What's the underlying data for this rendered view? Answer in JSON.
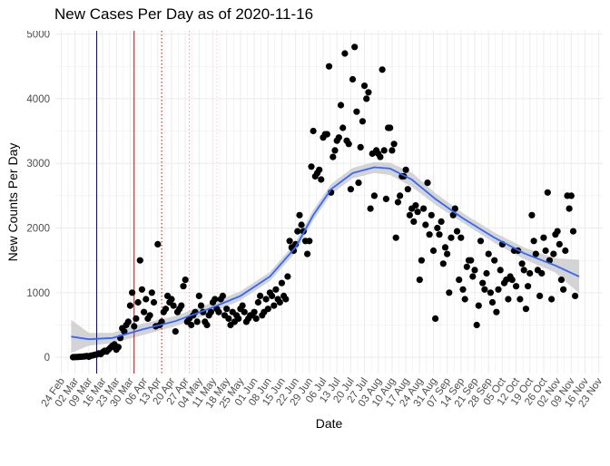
{
  "chart_data": {
    "type": "scatter",
    "title": "New Cases Per Day as of 2020-11-16",
    "xlabel": "Date",
    "ylabel": "New Counts Per Day",
    "xlim": [
      "2020-02-21",
      "2020-11-25"
    ],
    "ylim": [
      -250,
      5050
    ],
    "grid": true,
    "legend": "none",
    "y_ticks": [
      0,
      1000,
      2000,
      3000,
      4000,
      5000
    ],
    "x_ticks": [
      {
        "date": "2020-02-24",
        "label": "24 Feb"
      },
      {
        "date": "2020-03-02",
        "label": "02 Mar"
      },
      {
        "date": "2020-03-09",
        "label": "09 Mar"
      },
      {
        "date": "2020-03-16",
        "label": "16 Mar"
      },
      {
        "date": "2020-03-23",
        "label": "23 Mar"
      },
      {
        "date": "2020-03-30",
        "label": "30 Mar"
      },
      {
        "date": "2020-04-06",
        "label": "06 Apr"
      },
      {
        "date": "2020-04-13",
        "label": "13 Apr"
      },
      {
        "date": "2020-04-20",
        "label": "20 Apr"
      },
      {
        "date": "2020-04-27",
        "label": "27 Apr"
      },
      {
        "date": "2020-05-04",
        "label": "04 May"
      },
      {
        "date": "2020-05-11",
        "label": "11 May"
      },
      {
        "date": "2020-05-18",
        "label": "18 May"
      },
      {
        "date": "2020-05-25",
        "label": "25 May"
      },
      {
        "date": "2020-06-01",
        "label": "01 Jun"
      },
      {
        "date": "2020-06-08",
        "label": "08 Jun"
      },
      {
        "date": "2020-06-15",
        "label": "15 Jun"
      },
      {
        "date": "2020-06-22",
        "label": "22 Jun"
      },
      {
        "date": "2020-06-29",
        "label": "29 Jun"
      },
      {
        "date": "2020-07-06",
        "label": "06 Jul"
      },
      {
        "date": "2020-07-13",
        "label": "13 Jul"
      },
      {
        "date": "2020-07-20",
        "label": "20 Jul"
      },
      {
        "date": "2020-07-27",
        "label": "27 Jul"
      },
      {
        "date": "2020-08-03",
        "label": "03 Aug"
      },
      {
        "date": "2020-08-10",
        "label": "10 Aug"
      },
      {
        "date": "2020-08-17",
        "label": "17 Aug"
      },
      {
        "date": "2020-08-24",
        "label": "24 Aug"
      },
      {
        "date": "2020-08-31",
        "label": "31 Aug"
      },
      {
        "date": "2020-09-07",
        "label": "07 Sep"
      },
      {
        "date": "2020-09-14",
        "label": "14 Sep"
      },
      {
        "date": "2020-09-21",
        "label": "21 Sep"
      },
      {
        "date": "2020-09-28",
        "label": "28 Sep"
      },
      {
        "date": "2020-10-05",
        "label": "05 Oct"
      },
      {
        "date": "2020-10-12",
        "label": "12 Oct"
      },
      {
        "date": "2020-10-19",
        "label": "19 Oct"
      },
      {
        "date": "2020-10-26",
        "label": "26 Oct"
      },
      {
        "date": "2020-11-02",
        "label": "02 Nov"
      },
      {
        "date": "2020-11-09",
        "label": "09 Nov"
      },
      {
        "date": "2020-11-16",
        "label": "16 Nov"
      },
      {
        "date": "2020-11-23",
        "label": "23 Nov"
      }
    ],
    "vlines": [
      {
        "date": "2020-03-13",
        "color": "#00008b",
        "style": "solid"
      },
      {
        "date": "2020-04-01",
        "color": "#cc0000",
        "style": "solid"
      },
      {
        "date": "2020-04-15",
        "color": "#cc0000",
        "style": "dotted"
      },
      {
        "date": "2020-04-29",
        "color": "#f4a0a0",
        "style": "dotted"
      },
      {
        "date": "2020-05-13",
        "color": "#f4cccc",
        "style": "dotted"
      }
    ],
    "colors": {
      "points": "#000000",
      "smooth": "#3366ff",
      "band": "#cccccc",
      "grid": "#ebebeb"
    },
    "smooth": {
      "x": [
        "2020-02-29",
        "2020-03-09",
        "2020-03-21",
        "2020-04-05",
        "2020-04-22",
        "2020-05-09",
        "2020-05-25",
        "2020-06-09",
        "2020-06-22",
        "2020-07-01",
        "2020-07-10",
        "2020-07-21",
        "2020-08-01",
        "2020-08-09",
        "2020-08-20",
        "2020-09-01",
        "2020-09-15",
        "2020-10-01",
        "2020-10-16",
        "2020-11-01",
        "2020-11-13"
      ],
      "y": [
        320,
        280,
        300,
        430,
        560,
        750,
        950,
        1250,
        1700,
        2200,
        2600,
        2850,
        2940,
        2920,
        2750,
        2450,
        2150,
        1850,
        1610,
        1420,
        1250
      ],
      "lower": [
        70,
        180,
        220,
        340,
        480,
        670,
        880,
        1180,
        1620,
        2120,
        2520,
        2770,
        2850,
        2820,
        2640,
        2360,
        2080,
        1770,
        1520,
        1310,
        990
      ],
      "upper": [
        580,
        380,
        380,
        520,
        640,
        830,
        1020,
        1320,
        1780,
        2280,
        2680,
        2930,
        3020,
        3010,
        2860,
        2540,
        2230,
        1930,
        1700,
        1530,
        1510
      ]
    },
    "points": [
      [
        "2020-03-01",
        2
      ],
      [
        "2020-03-02",
        5
      ],
      [
        "2020-03-03",
        5
      ],
      [
        "2020-03-04",
        8
      ],
      [
        "2020-03-05",
        10
      ],
      [
        "2020-03-06",
        12
      ],
      [
        "2020-03-07",
        15
      ],
      [
        "2020-03-08",
        20
      ],
      [
        "2020-03-09",
        10
      ],
      [
        "2020-03-10",
        25
      ],
      [
        "2020-03-11",
        30
      ],
      [
        "2020-03-12",
        40
      ],
      [
        "2020-03-13",
        45
      ],
      [
        "2020-03-14",
        60
      ],
      [
        "2020-03-15",
        50
      ],
      [
        "2020-03-16",
        80
      ],
      [
        "2020-03-17",
        100
      ],
      [
        "2020-03-18",
        90
      ],
      [
        "2020-03-19",
        120
      ],
      [
        "2020-03-20",
        150
      ],
      [
        "2020-03-21",
        180
      ],
      [
        "2020-03-22",
        200
      ],
      [
        "2020-03-23",
        120
      ],
      [
        "2020-03-24",
        160
      ],
      [
        "2020-03-25",
        300
      ],
      [
        "2020-03-26",
        450
      ],
      [
        "2020-03-27",
        400
      ],
      [
        "2020-03-28",
        500
      ],
      [
        "2020-03-29",
        550
      ],
      [
        "2020-03-30",
        800
      ],
      [
        "2020-03-31",
        1000
      ],
      [
        "2020-04-01",
        480
      ],
      [
        "2020-04-02",
        600
      ],
      [
        "2020-04-03",
        850
      ],
      [
        "2020-04-04",
        1500
      ],
      [
        "2020-04-05",
        1050
      ],
      [
        "2020-04-06",
        700
      ],
      [
        "2020-04-07",
        900
      ],
      [
        "2020-04-08",
        600
      ],
      [
        "2020-04-09",
        650
      ],
      [
        "2020-04-10",
        1000
      ],
      [
        "2020-04-11",
        850
      ],
      [
        "2020-04-12",
        480
      ],
      [
        "2020-04-13",
        1750
      ],
      [
        "2020-04-14",
        500
      ],
      [
        "2020-04-15",
        550
      ],
      [
        "2020-04-16",
        700
      ],
      [
        "2020-04-17",
        750
      ],
      [
        "2020-04-18",
        950
      ],
      [
        "2020-04-19",
        850
      ],
      [
        "2020-04-20",
        900
      ],
      [
        "2020-04-21",
        800
      ],
      [
        "2020-04-22",
        400
      ],
      [
        "2020-04-23",
        700
      ],
      [
        "2020-04-24",
        750
      ],
      [
        "2020-04-25",
        800
      ],
      [
        "2020-04-26",
        1100
      ],
      [
        "2020-04-27",
        1200
      ],
      [
        "2020-04-28",
        550
      ],
      [
        "2020-04-29",
        600
      ],
      [
        "2020-04-30",
        500
      ],
      [
        "2020-05-01",
        650
      ],
      [
        "2020-05-02",
        700
      ],
      [
        "2020-05-03",
        550
      ],
      [
        "2020-05-04",
        950
      ],
      [
        "2020-05-05",
        800
      ],
      [
        "2020-05-06",
        700
      ],
      [
        "2020-05-07",
        550
      ],
      [
        "2020-05-08",
        500
      ],
      [
        "2020-05-09",
        650
      ],
      [
        "2020-05-10",
        700
      ],
      [
        "2020-05-11",
        850
      ],
      [
        "2020-05-12",
        900
      ],
      [
        "2020-05-13",
        750
      ],
      [
        "2020-05-14",
        700
      ],
      [
        "2020-05-15",
        900
      ],
      [
        "2020-05-16",
        950
      ],
      [
        "2020-05-17",
        650
      ],
      [
        "2020-05-18",
        750
      ],
      [
        "2020-05-19",
        600
      ],
      [
        "2020-05-20",
        500
      ],
      [
        "2020-05-21",
        700
      ],
      [
        "2020-05-22",
        550
      ],
      [
        "2020-05-23",
        650
      ],
      [
        "2020-05-24",
        600
      ],
      [
        "2020-05-25",
        750
      ],
      [
        "2020-05-26",
        800
      ],
      [
        "2020-05-27",
        700
      ],
      [
        "2020-05-28",
        550
      ],
      [
        "2020-05-29",
        600
      ],
      [
        "2020-05-30",
        650
      ],
      [
        "2020-05-31",
        650
      ],
      [
        "2020-06-01",
        700
      ],
      [
        "2020-06-02",
        600
      ],
      [
        "2020-06-03",
        850
      ],
      [
        "2020-06-04",
        950
      ],
      [
        "2020-06-05",
        650
      ],
      [
        "2020-06-06",
        700
      ],
      [
        "2020-06-07",
        900
      ],
      [
        "2020-06-08",
        750
      ],
      [
        "2020-06-09",
        1000
      ],
      [
        "2020-06-10",
        950
      ],
      [
        "2020-06-11",
        800
      ],
      [
        "2020-06-12",
        1050
      ],
      [
        "2020-06-13",
        900
      ],
      [
        "2020-06-14",
        850
      ],
      [
        "2020-06-15",
        1150
      ],
      [
        "2020-06-16",
        950
      ],
      [
        "2020-06-17",
        900
      ],
      [
        "2020-06-18",
        1250
      ],
      [
        "2020-06-19",
        1800
      ],
      [
        "2020-06-20",
        1700
      ],
      [
        "2020-06-21",
        1650
      ],
      [
        "2020-06-22",
        1750
      ],
      [
        "2020-06-23",
        1950
      ],
      [
        "2020-06-24",
        2200
      ],
      [
        "2020-06-25",
        2050
      ],
      [
        "2020-06-26",
        1950
      ],
      [
        "2020-06-27",
        1800
      ],
      [
        "2020-06-28",
        1600
      ],
      [
        "2020-06-29",
        1800
      ],
      [
        "2020-06-30",
        2950
      ],
      [
        "2020-07-01",
        3500
      ],
      [
        "2020-07-02",
        2800
      ],
      [
        "2020-07-03",
        2850
      ],
      [
        "2020-07-04",
        2900
      ],
      [
        "2020-07-05",
        2750
      ],
      [
        "2020-07-06",
        3400
      ],
      [
        "2020-07-07",
        3450
      ],
      [
        "2020-07-08",
        3450
      ],
      [
        "2020-07-09",
        4500
      ],
      [
        "2020-07-10",
        2550
      ],
      [
        "2020-07-11",
        3100
      ],
      [
        "2020-07-12",
        3200
      ],
      [
        "2020-07-13",
        3350
      ],
      [
        "2020-07-14",
        3400
      ],
      [
        "2020-07-15",
        3900
      ],
      [
        "2020-07-16",
        3550
      ],
      [
        "2020-07-17",
        4700
      ],
      [
        "2020-07-18",
        3350
      ],
      [
        "2020-07-19",
        3300
      ],
      [
        "2020-07-20",
        2600
      ],
      [
        "2020-07-21",
        4300
      ],
      [
        "2020-07-22",
        4800
      ],
      [
        "2020-07-23",
        3800
      ],
      [
        "2020-07-24",
        2700
      ],
      [
        "2020-07-25",
        3250
      ],
      [
        "2020-07-26",
        3650
      ],
      [
        "2020-07-27",
        4200
      ],
      [
        "2020-07-28",
        4000
      ],
      [
        "2020-07-29",
        4100
      ],
      [
        "2020-07-30",
        2300
      ],
      [
        "2020-07-31",
        3150
      ],
      [
        "2020-08-01",
        2500
      ],
      [
        "2020-08-02",
        3200
      ],
      [
        "2020-08-03",
        3150
      ],
      [
        "2020-08-04",
        3100
      ],
      [
        "2020-08-05",
        4450
      ],
      [
        "2020-08-06",
        3200
      ],
      [
        "2020-08-07",
        2450
      ],
      [
        "2020-08-08",
        3550
      ],
      [
        "2020-08-09",
        3550
      ],
      [
        "2020-08-10",
        3200
      ],
      [
        "2020-08-11",
        3300
      ],
      [
        "2020-08-12",
        1850
      ],
      [
        "2020-08-13",
        2400
      ],
      [
        "2020-08-14",
        2500
      ],
      [
        "2020-08-15",
        2800
      ],
      [
        "2020-08-16",
        2800
      ],
      [
        "2020-08-17",
        2900
      ],
      [
        "2020-08-18",
        2600
      ],
      [
        "2020-08-19",
        2200
      ],
      [
        "2020-08-20",
        2300
      ],
      [
        "2020-08-21",
        2100
      ],
      [
        "2020-08-22",
        2350
      ],
      [
        "2020-08-23",
        2250
      ],
      [
        "2020-08-24",
        1200
      ],
      [
        "2020-08-25",
        1500
      ],
      [
        "2020-08-26",
        2300
      ],
      [
        "2020-08-27",
        2050
      ],
      [
        "2020-08-28",
        2700
      ],
      [
        "2020-08-29",
        1900
      ],
      [
        "2020-08-30",
        2200
      ],
      [
        "2020-08-31",
        1650
      ],
      [
        "2020-09-01",
        600
      ],
      [
        "2020-09-02",
        2000
      ],
      [
        "2020-09-03",
        1900
      ],
      [
        "2020-09-04",
        2100
      ],
      [
        "2020-09-05",
        1450
      ],
      [
        "2020-09-06",
        1700
      ],
      [
        "2020-09-07",
        1600
      ],
      [
        "2020-09-08",
        1000
      ],
      [
        "2020-09-09",
        1850
      ],
      [
        "2020-09-10",
        2200
      ],
      [
        "2020-09-11",
        2300
      ],
      [
        "2020-09-12",
        1950
      ],
      [
        "2020-09-13",
        1200
      ],
      [
        "2020-09-14",
        1850
      ],
      [
        "2020-09-15",
        1050
      ],
      [
        "2020-09-16",
        900
      ],
      [
        "2020-09-17",
        1400
      ],
      [
        "2020-09-18",
        1500
      ],
      [
        "2020-09-19",
        1500
      ],
      [
        "2020-09-20",
        1250
      ],
      [
        "2020-09-21",
        1350
      ],
      [
        "2020-09-22",
        500
      ],
      [
        "2020-09-23",
        800
      ],
      [
        "2020-09-24",
        1800
      ],
      [
        "2020-09-25",
        1150
      ],
      [
        "2020-09-26",
        1050
      ],
      [
        "2020-09-27",
        1300
      ],
      [
        "2020-09-28",
        1600
      ],
      [
        "2020-09-29",
        1000
      ],
      [
        "2020-09-30",
        850
      ],
      [
        "2020-10-01",
        1500
      ],
      [
        "2020-10-02",
        700
      ],
      [
        "2020-10-03",
        1050
      ],
      [
        "2020-10-04",
        1350
      ],
      [
        "2020-10-05",
        1750
      ],
      [
        "2020-10-06",
        1150
      ],
      [
        "2020-10-07",
        1200
      ],
      [
        "2020-10-08",
        900
      ],
      [
        "2020-10-09",
        1250
      ],
      [
        "2020-10-10",
        1200
      ],
      [
        "2020-10-11",
        1650
      ],
      [
        "2020-10-12",
        1100
      ],
      [
        "2020-10-13",
        1650
      ],
      [
        "2020-10-14",
        900
      ],
      [
        "2020-10-15",
        1450
      ],
      [
        "2020-10-16",
        1350
      ],
      [
        "2020-10-17",
        750
      ],
      [
        "2020-10-18",
        1100
      ],
      [
        "2020-10-19",
        1300
      ],
      [
        "2020-10-20",
        2200
      ],
      [
        "2020-10-21",
        1800
      ],
      [
        "2020-10-22",
        1600
      ],
      [
        "2020-10-23",
        1350
      ],
      [
        "2020-10-24",
        950
      ],
      [
        "2020-10-25",
        1300
      ],
      [
        "2020-10-26",
        1850
      ],
      [
        "2020-10-27",
        1650
      ],
      [
        "2020-10-28",
        2550
      ],
      [
        "2020-10-29",
        1500
      ],
      [
        "2020-10-30",
        900
      ],
      [
        "2020-10-31",
        1600
      ],
      [
        "2020-11-01",
        1900
      ],
      [
        "2020-11-02",
        1950
      ],
      [
        "2020-11-03",
        1750
      ],
      [
        "2020-11-04",
        1200
      ],
      [
        "2020-11-05",
        1050
      ],
      [
        "2020-11-06",
        1650
      ],
      [
        "2020-11-07",
        2500
      ],
      [
        "2020-11-08",
        2300
      ],
      [
        "2020-11-09",
        2500
      ],
      [
        "2020-11-10",
        1950
      ],
      [
        "2020-11-11",
        950
      ]
    ]
  }
}
